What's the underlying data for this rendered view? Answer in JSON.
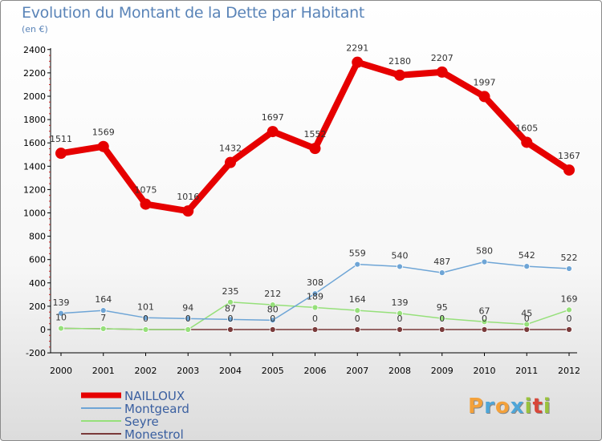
{
  "title": "Evolution du Montant de la Dette par Habitant",
  "unit": "(en €)",
  "brand": "Proxiti",
  "brand_colors": [
    "#f3a13b",
    "#4fa6d8",
    "#f3a13b",
    "#4fa6d8",
    "#9ac23c",
    "#d8473a",
    "#9ac23c"
  ],
  "chart_data": {
    "type": "line",
    "title": "Evolution du Montant de la Dette par Habitant",
    "ylabel": "(en €)",
    "xlabel": "",
    "ylim": [
      -200,
      2400
    ],
    "yticks": [
      -200,
      0,
      200,
      400,
      600,
      800,
      1000,
      1200,
      1400,
      1600,
      1800,
      2000,
      2200,
      2400
    ],
    "categories": [
      "2000",
      "2001",
      "2002",
      "2003",
      "2004",
      "2005",
      "2006",
      "2007",
      "2008",
      "2009",
      "2010",
      "2011",
      "2012"
    ],
    "grid": false,
    "legend_position": "bottom-left",
    "series": [
      {
        "name": "NAILLOUX",
        "color": "#e60000",
        "width": 8,
        "marker": 7,
        "values": [
          1511,
          1569,
          1075,
          1016,
          1432,
          1697,
          1552,
          2291,
          2180,
          2207,
          1997,
          1605,
          1367
        ]
      },
      {
        "name": "Montgeard",
        "color": "#6ea5d6",
        "width": 1.5,
        "marker": 3.5,
        "values": [
          139,
          164,
          101,
          94,
          87,
          80,
          308,
          559,
          540,
          487,
          580,
          542,
          522
        ]
      },
      {
        "name": "Seyre",
        "color": "#96e07a",
        "width": 1.5,
        "marker": 3.5,
        "values": [
          10,
          7,
          0,
          0,
          235,
          212,
          189,
          164,
          139,
          95,
          67,
          45,
          169
        ]
      },
      {
        "name": "Monestrol",
        "color": "#7a3a3a",
        "width": 1.5,
        "marker": 3.5,
        "values": [
          10,
          7,
          0,
          0,
          0,
          0,
          0,
          0,
          0,
          0,
          0,
          0,
          0
        ]
      }
    ]
  }
}
